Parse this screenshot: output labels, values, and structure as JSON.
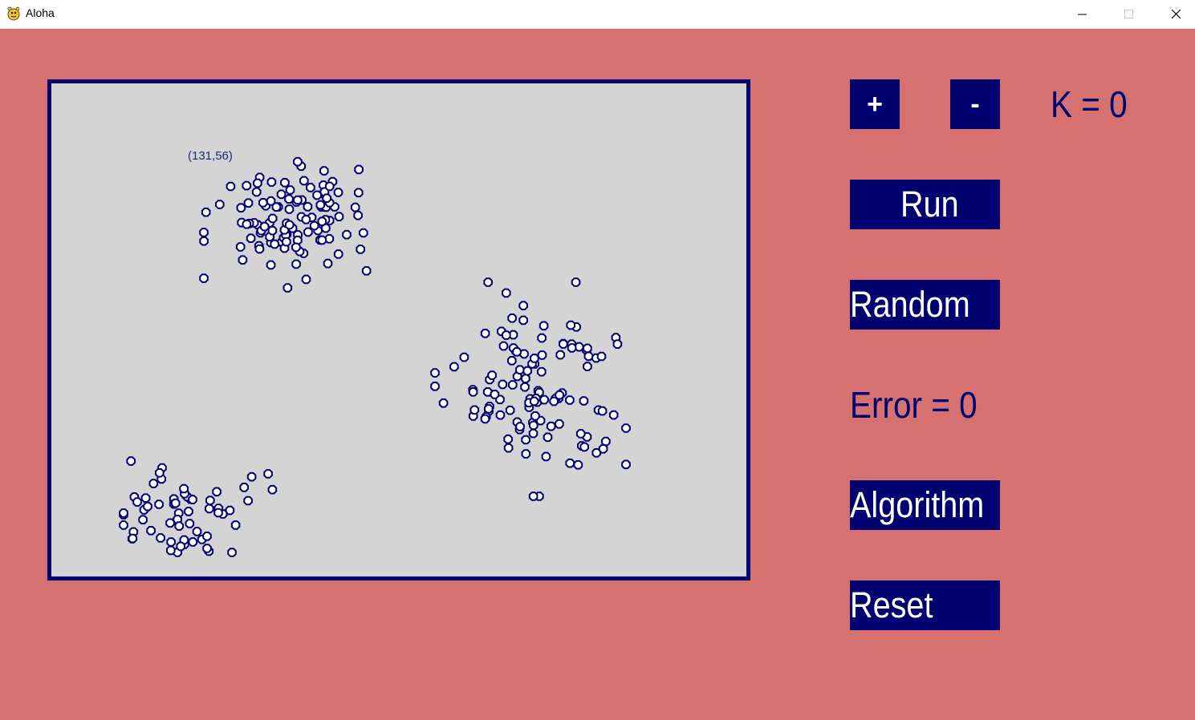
{
  "window": {
    "title": "Aloha",
    "icon": "pygame-snake-icon",
    "controls": [
      "minimize-icon",
      "maximize-icon",
      "close-icon"
    ]
  },
  "colors": {
    "background": "#d57170",
    "accent": "#00006e",
    "canvas": "#d4d4d4",
    "point_fill": "#ffffff"
  },
  "canvas": {
    "hover_coordinate": "(131,56)"
  },
  "controls": {
    "plus_label": "+",
    "minus_label": "-",
    "k_text": "K = 0",
    "run_label": "Run",
    "random_label": "Random",
    "error_text": "Error = 0",
    "algorithm_label": "Algorithm",
    "reset_label": "Reset"
  }
}
